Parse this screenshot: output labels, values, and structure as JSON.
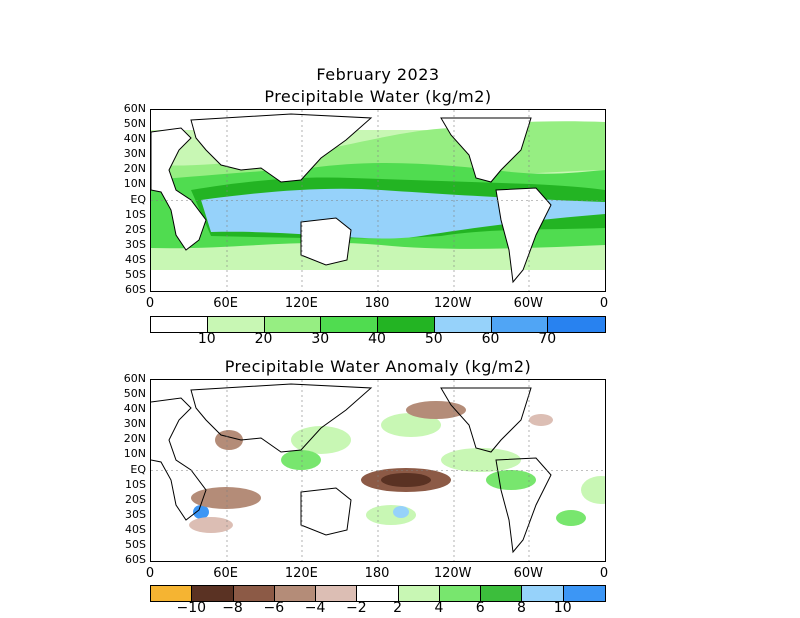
{
  "top": {
    "title_line1": "February 2023",
    "title_line2": "Precipitable Water (kg/m2)",
    "lat_labels": [
      "60N",
      "50N",
      "40N",
      "30N",
      "20N",
      "10N",
      "EQ",
      "10S",
      "20S",
      "30S",
      "40S",
      "50S",
      "60S"
    ],
    "lon_labels": [
      "0",
      "60E",
      "120E",
      "180",
      "120W",
      "60W",
      "0"
    ],
    "colorbar": {
      "colors": [
        "#ffffff",
        "#c8f7b4",
        "#96ee82",
        "#50dc50",
        "#23b423",
        "#96d2fa",
        "#50a5f5",
        "#2882f0"
      ],
      "labels": [
        "10",
        "20",
        "30",
        "40",
        "50",
        "60",
        "70"
      ]
    }
  },
  "bottom": {
    "title": "Precipitable Water Anomaly (kg/m2)",
    "lat_labels": [
      "60N",
      "50N",
      "40N",
      "30N",
      "20N",
      "10N",
      "EQ",
      "10S",
      "20S",
      "30S",
      "40S",
      "50S",
      "60S"
    ],
    "lon_labels": [
      "0",
      "60E",
      "120E",
      "180",
      "120W",
      "60W",
      "0"
    ],
    "colorbar": {
      "colors": [
        "#f5b432",
        "#5a3223",
        "#8c5a46",
        "#b48c78",
        "#dcbeb4",
        "#ffffff",
        "#c8f7b4",
        "#78e66e",
        "#3cbe3c",
        "#96d2fa",
        "#3c96f5"
      ],
      "labels": [
        "−10",
        "−8",
        "−6",
        "−4",
        "−2",
        "2",
        "4",
        "6",
        "8",
        "10"
      ]
    }
  }
}
